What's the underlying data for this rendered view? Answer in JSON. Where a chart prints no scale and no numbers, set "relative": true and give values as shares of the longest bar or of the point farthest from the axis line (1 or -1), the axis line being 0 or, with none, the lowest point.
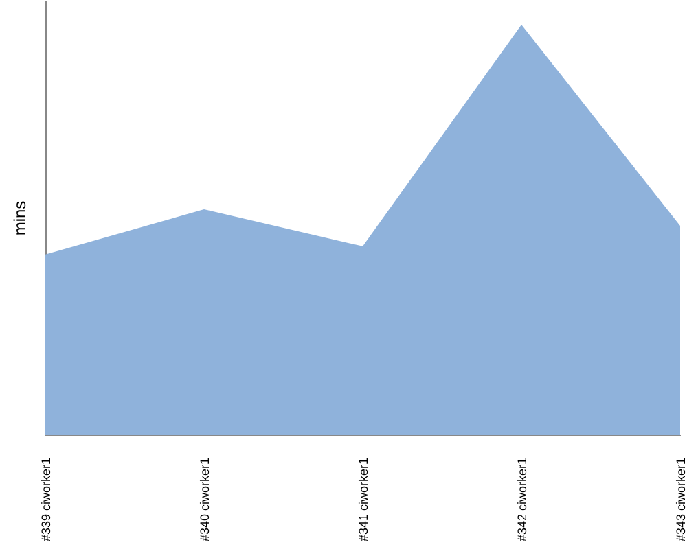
{
  "chart_data": {
    "type": "area",
    "ylabel": "mins",
    "relative": true,
    "categories": [
      "#339 ciworker1",
      "#340 ciworker1",
      "#341 ciworker1",
      "#342 ciworker1",
      "#343 ciworker1"
    ],
    "series": [
      {
        "color": "#8fb2db",
        "values": [
          0.44,
          0.55,
          0.46,
          1,
          0.51
        ]
      }
    ]
  }
}
